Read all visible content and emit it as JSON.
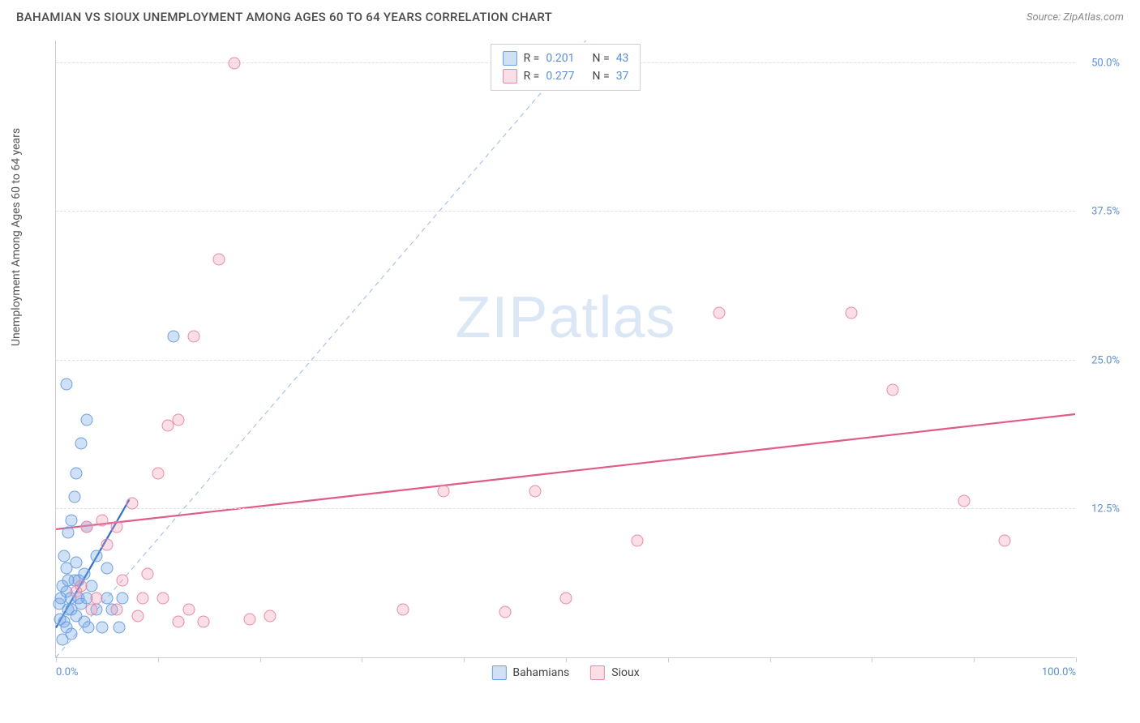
{
  "header": {
    "title": "BAHAMIAN VS SIOUX UNEMPLOYMENT AMONG AGES 60 TO 64 YEARS CORRELATION CHART",
    "source": "Source: ZipAtlas.com"
  },
  "watermark": {
    "part1": "ZIP",
    "part2": "atlas"
  },
  "chart": {
    "type": "scatter",
    "ylabel": "Unemployment Among Ages 60 to 64 years",
    "background_color": "#ffffff",
    "grid_color": "#e0e0e0",
    "axis_color": "#cccccc",
    "label_color": "#5b8fd6",
    "xlim": [
      0,
      100
    ],
    "ylim": [
      0,
      52
    ],
    "xtick_positions": [
      0,
      10,
      20,
      30,
      40,
      50,
      60,
      70,
      80,
      90,
      100
    ],
    "xtick_labels": {
      "0": "0.0%",
      "100": "100.0%"
    },
    "ytick_positions": [
      12.5,
      25.0,
      37.5,
      50.0
    ],
    "ytick_labels": [
      "12.5%",
      "25.0%",
      "37.5%",
      "50.0%"
    ],
    "marker_radius": 7.5,
    "diagonal": {
      "color": "#9db8e0",
      "dash": "6,5",
      "width": 1,
      "from": [
        0,
        0
      ],
      "to": [
        52,
        52
      ]
    },
    "series": [
      {
        "name": "Bahamians",
        "fill_color": "rgba(120,170,230,0.35)",
        "stroke_color": "#6a9fe0",
        "trend_color": "#2f6fc9",
        "trend_width": 2.2,
        "trend_from": [
          0,
          2.5
        ],
        "trend_to": [
          7.2,
          13.3
        ],
        "points": [
          [
            0.3,
            4.5
          ],
          [
            0.5,
            5.0
          ],
          [
            0.6,
            6.0
          ],
          [
            0.8,
            3.0
          ],
          [
            1.0,
            5.5
          ],
          [
            1.0,
            7.5
          ],
          [
            1.2,
            4.0
          ],
          [
            1.2,
            10.5
          ],
          [
            1.4,
            5.0
          ],
          [
            1.5,
            11.5
          ],
          [
            1.5,
            2.0
          ],
          [
            1.8,
            6.5
          ],
          [
            1.8,
            13.5
          ],
          [
            2.0,
            3.5
          ],
          [
            2.0,
            15.5
          ],
          [
            2.0,
            8.0
          ],
          [
            2.2,
            5.0
          ],
          [
            2.5,
            18.0
          ],
          [
            2.5,
            4.5
          ],
          [
            2.8,
            7.0
          ],
          [
            3.0,
            20.0
          ],
          [
            3.0,
            5.0
          ],
          [
            3.0,
            11.0
          ],
          [
            3.2,
            2.5
          ],
          [
            1.0,
            23.0
          ],
          [
            3.5,
            6.0
          ],
          [
            4.0,
            4.0
          ],
          [
            4.0,
            8.5
          ],
          [
            4.5,
            2.5
          ],
          [
            5.0,
            5.0
          ],
          [
            5.0,
            7.5
          ],
          [
            5.5,
            4.0
          ],
          [
            6.2,
            2.5
          ],
          [
            6.5,
            5.0
          ],
          [
            2.2,
            6.5
          ],
          [
            0.6,
            1.5
          ],
          [
            11.5,
            27.0
          ],
          [
            1.0,
            2.5
          ],
          [
            1.5,
            4.0
          ],
          [
            0.8,
            8.5
          ],
          [
            2.8,
            3.0
          ],
          [
            1.2,
            6.5
          ],
          [
            0.4,
            3.2
          ]
        ]
      },
      {
        "name": "Sioux",
        "fill_color": "rgba(240,150,175,0.30)",
        "stroke_color": "#e68aa5",
        "trend_color": "#e05a8a",
        "trend_width": 2.2,
        "trend_from": [
          0,
          10.8
        ],
        "trend_to": [
          100,
          20.5
        ],
        "points": [
          [
            2.5,
            6.0
          ],
          [
            3.0,
            11.0
          ],
          [
            4.0,
            5.0
          ],
          [
            5.0,
            9.5
          ],
          [
            6.0,
            4.0
          ],
          [
            6.5,
            6.5
          ],
          [
            7.5,
            13.0
          ],
          [
            8.0,
            3.5
          ],
          [
            9.0,
            7.0
          ],
          [
            10.0,
            15.5
          ],
          [
            10.5,
            5.0
          ],
          [
            11.0,
            19.5
          ],
          [
            12.0,
            3.0
          ],
          [
            12.0,
            20.0
          ],
          [
            13.5,
            27.0
          ],
          [
            13.0,
            4.0
          ],
          [
            14.5,
            3.0
          ],
          [
            16.0,
            33.5
          ],
          [
            17.5,
            50.0
          ],
          [
            19.0,
            3.2
          ],
          [
            21.0,
            3.5
          ],
          [
            34.0,
            4.0
          ],
          [
            38.0,
            14.0
          ],
          [
            44.0,
            3.8
          ],
          [
            47.0,
            14.0
          ],
          [
            50.0,
            5.0
          ],
          [
            57.0,
            9.8
          ],
          [
            65.0,
            29.0
          ],
          [
            78.0,
            29.0
          ],
          [
            82.0,
            22.5
          ],
          [
            89.0,
            13.2
          ],
          [
            93.0,
            9.8
          ],
          [
            4.5,
            11.5
          ],
          [
            3.5,
            4.0
          ],
          [
            2.0,
            5.5
          ],
          [
            8.5,
            5.0
          ],
          [
            6.0,
            11.0
          ]
        ]
      }
    ],
    "legend_top": [
      {
        "series_index": 0,
        "R": "0.201",
        "N": "43"
      },
      {
        "series_index": 1,
        "R": "0.277",
        "N": "37"
      }
    ],
    "legend_bottom": [
      {
        "series_index": 0,
        "label": "Bahamians"
      },
      {
        "series_index": 1,
        "label": "Sioux"
      }
    ],
    "legend_labels": {
      "R": "R =",
      "N": "N ="
    }
  }
}
